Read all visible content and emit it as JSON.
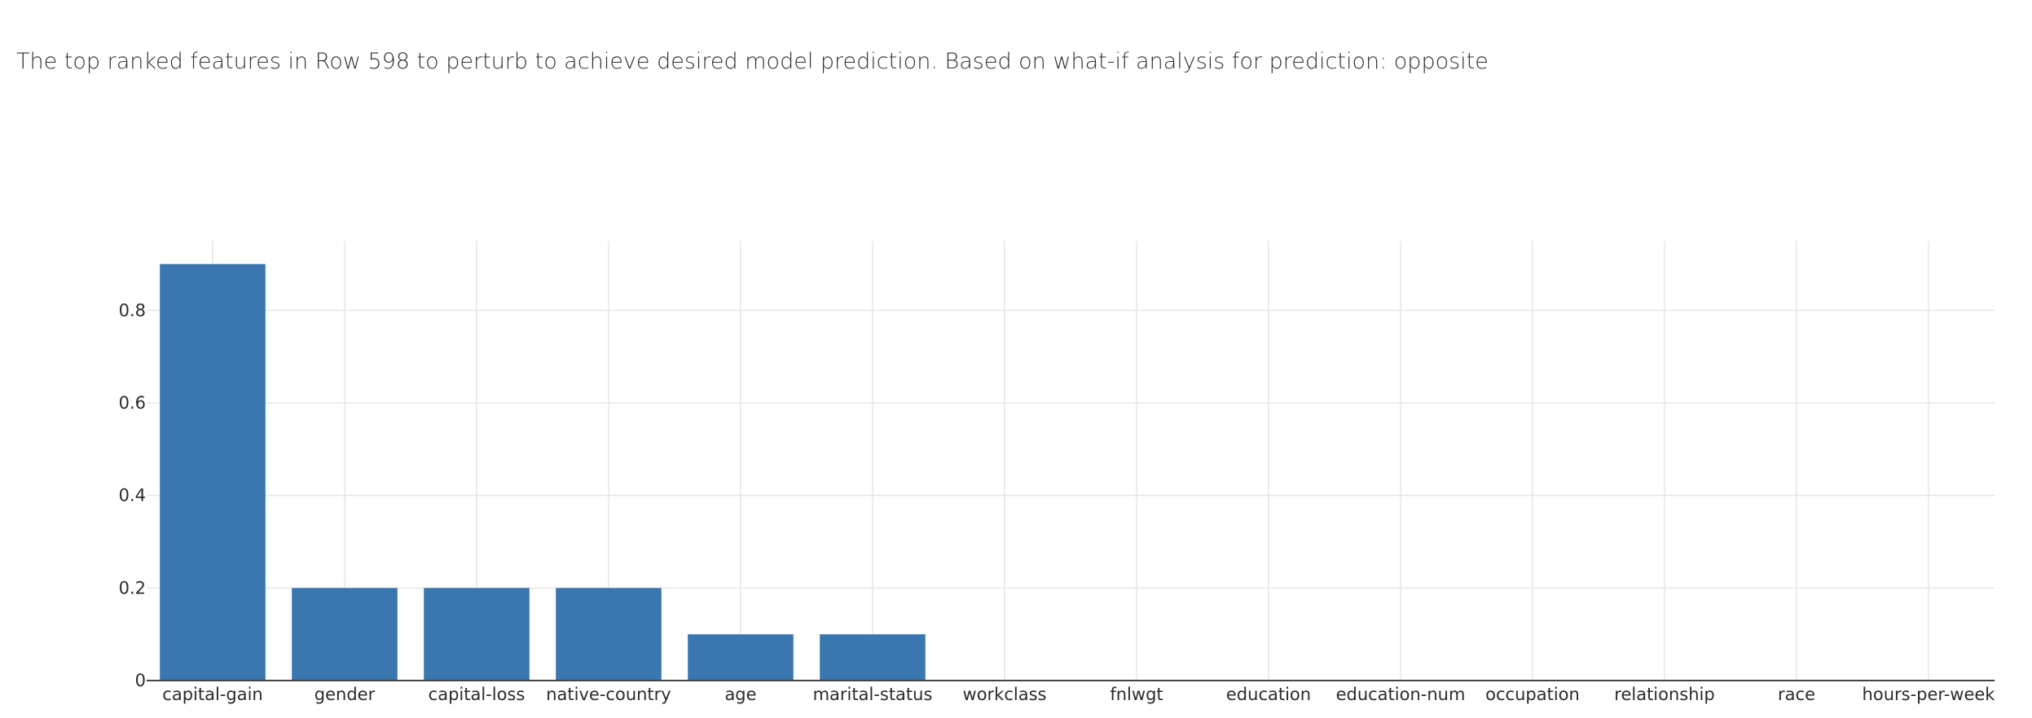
{
  "caption": "The top ranked features in Row 598 to perturb to achieve desired model prediction. Based on what-if analysis for prediction: opposite",
  "colors": {
    "bar": "#3a76b0",
    "grid": "#e6e6e6",
    "axis": "#444444"
  },
  "chart_data": {
    "type": "bar",
    "categories": [
      "capital-gain",
      "gender",
      "capital-loss",
      "native-country",
      "age",
      "marital-status",
      "workclass",
      "fnlwgt",
      "education",
      "education-num",
      "occupation",
      "relationship",
      "race",
      "hours-per-week"
    ],
    "values": [
      0.9,
      0.2,
      0.2,
      0.2,
      0.1,
      0.1,
      0,
      0,
      0,
      0,
      0,
      0,
      0,
      0
    ],
    "yticks": [
      0,
      0.2,
      0.4,
      0.6,
      0.8
    ],
    "ytick_labels": [
      "0",
      "0.2",
      "0.4",
      "0.6",
      "0.8"
    ],
    "ylim": [
      0,
      0.95
    ],
    "grid": true
  }
}
